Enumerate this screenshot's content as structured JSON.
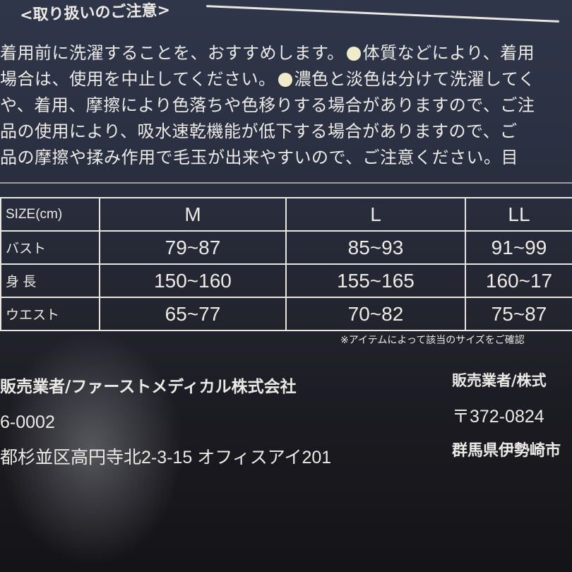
{
  "heading": "<取り扱いのご注意>",
  "notice_lines": [
    {
      "before": "着用前に洗濯することを、おすすめします。",
      "after": "体質などにより、着用"
    },
    {
      "before": "場合は、使用を中止してください。",
      "after": "濃色と淡色は分けて洗濯してく"
    },
    {
      "before": "や、着用、摩擦により色落ちや色移りする場合がありますので、ご注",
      "after": ""
    },
    {
      "before": "品の使用により、吸水速乾機能が低下する場合がありますので、ご",
      "after": ""
    },
    {
      "before": "品の摩擦や揉み作用で毛玉が出来やすいので、ご注意ください。目",
      "after": ""
    }
  ],
  "size_table": {
    "header": [
      "SIZE(cm)",
      "M",
      "L",
      "LL"
    ],
    "rows": [
      [
        "バスト",
        "79~87",
        "85~93",
        "91~99"
      ],
      [
        "身 長",
        "150~160",
        "155~165",
        "160~17"
      ],
      [
        "ウエスト",
        "65~77",
        "70~82",
        "75~87"
      ]
    ]
  },
  "size_note": "※アイテムによって該当のサイズをご確認",
  "left_company": {
    "name": "販売業者/ファーストメディカル株式会社",
    "postal": "6-0002",
    "address": "都杉並区高円寺北2-3-15 オフィスアイ201"
  },
  "right_company": {
    "name": "販売業者/株式",
    "postal": "〒372-0824",
    "address": "群馬県伊勢崎市"
  }
}
